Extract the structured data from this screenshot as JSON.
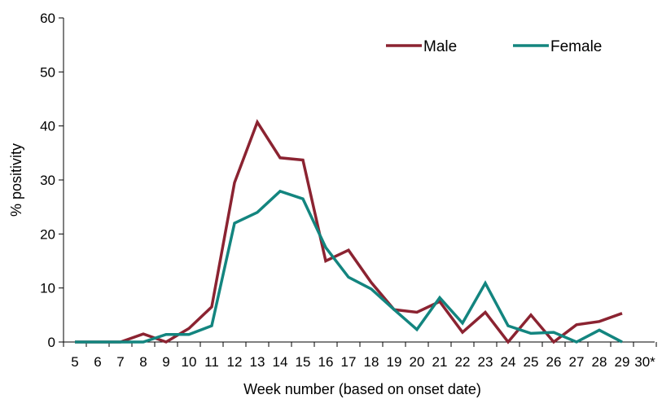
{
  "chart_data": {
    "type": "line",
    "title": "",
    "xlabel": "Week number (based on onset date)",
    "ylabel": "% positivity",
    "categories": [
      "5",
      "6",
      "7",
      "8",
      "9",
      "10",
      "11",
      "12",
      "13",
      "14",
      "15",
      "16",
      "17",
      "18",
      "19",
      "20",
      "21",
      "22",
      "23",
      "24",
      "25",
      "26",
      "27",
      "28",
      "29",
      "30*"
    ],
    "ylim": [
      0,
      60
    ],
    "yticks": [
      0,
      10,
      20,
      30,
      40,
      50,
      60
    ],
    "grid": false,
    "legend_position": "top-right",
    "series": [
      {
        "name": "Male",
        "color": "#8B2331",
        "values": [
          0,
          0,
          0,
          1.5,
          0,
          2.5,
          6.5,
          29.5,
          40.7,
          34.1,
          33.7,
          15,
          17,
          11,
          6,
          5.5,
          7.5,
          1.8,
          5.5,
          0,
          5,
          0,
          3.2,
          3.8,
          5.3,
          null
        ]
      },
      {
        "name": "Female",
        "color": "#13857F",
        "values": [
          0,
          0,
          0,
          0,
          1.4,
          1.4,
          3,
          22,
          24,
          27.9,
          26.5,
          17.5,
          12,
          9.8,
          6,
          2.3,
          8.2,
          3.5,
          10.9,
          3,
          1.6,
          1.8,
          0,
          2.2,
          0,
          null
        ]
      }
    ]
  }
}
